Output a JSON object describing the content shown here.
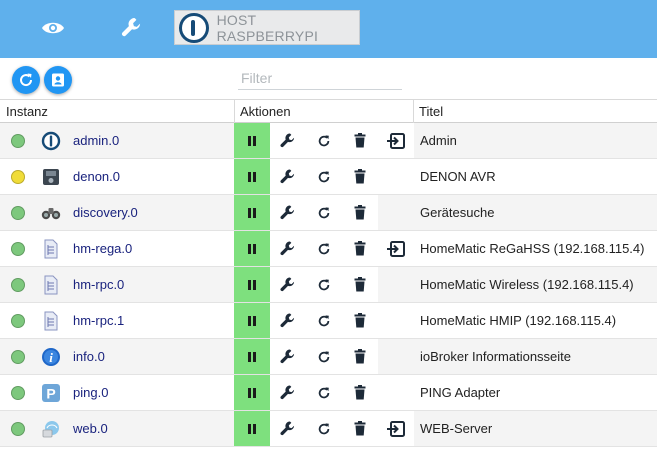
{
  "header": {
    "host_label": "HOST RASPBERRYPI",
    "icons": [
      "eye-icon",
      "wrench-icon"
    ]
  },
  "toolbar": {
    "reload_icon": "refresh-icon",
    "expert_icon": "user-card-icon"
  },
  "filter": {
    "placeholder": "Filter",
    "value": ""
  },
  "table": {
    "columns": {
      "instance": "Instanz",
      "actions": "Aktionen",
      "title": "Titel"
    },
    "status_colors": {
      "green": "#7dc87d",
      "yellow": "#f0dc38"
    },
    "rows": [
      {
        "instance": "admin.0",
        "status": "green",
        "icon": "iobroker-logo-icon",
        "title": "Admin",
        "has_open": true
      },
      {
        "instance": "denon.0",
        "status": "yellow",
        "icon": "denon-receiver-icon",
        "title": "DENON AVR",
        "has_open": false
      },
      {
        "instance": "discovery.0",
        "status": "green",
        "icon": "binoculars-icon",
        "title": "Gerätesuche",
        "has_open": false
      },
      {
        "instance": "hm-rega.0",
        "status": "green",
        "icon": "homematic-icon",
        "title": "HomeMatic ReGaHSS (192.168.115.4)",
        "has_open": true
      },
      {
        "instance": "hm-rpc.0",
        "status": "green",
        "icon": "homematic-icon",
        "title": "HomeMatic Wireless (192.168.115.4)",
        "has_open": false
      },
      {
        "instance": "hm-rpc.1",
        "status": "green",
        "icon": "homematic-icon",
        "title": "HomeMatic HMIP (192.168.115.4)",
        "has_open": false
      },
      {
        "instance": "info.0",
        "status": "green",
        "icon": "info-icon",
        "title": "ioBroker Informationsseite",
        "has_open": false
      },
      {
        "instance": "ping.0",
        "status": "green",
        "icon": "ping-p-icon",
        "title": "PING Adapter",
        "has_open": false
      },
      {
        "instance": "web.0",
        "status": "green",
        "icon": "web-server-icon",
        "title": "WEB-Server",
        "has_open": true
      }
    ]
  }
}
